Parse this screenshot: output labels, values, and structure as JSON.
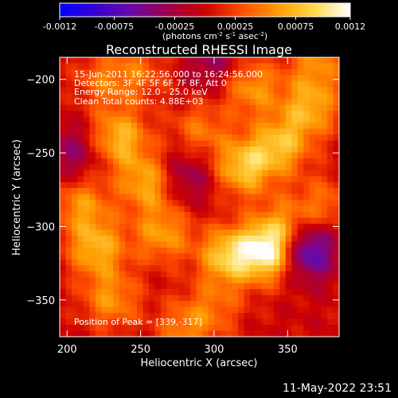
{
  "chart_data": {
    "type": "heatmap",
    "title": "Reconstructed RHESSI Image",
    "xlabel": "Heliocentric X (arcsec)",
    "ylabel": "Heliocentric Y (arcsec)",
    "xlim": [
      195,
      385
    ],
    "ylim": [
      -375,
      -185
    ],
    "xticks": [
      200,
      250,
      300,
      350
    ],
    "yticks": [
      -200,
      -250,
      -300,
      -350
    ],
    "colorbar": {
      "label": "(photons cm",
      "label_parts": [
        "(photons cm",
        "-2",
        " s",
        "-1",
        " asec",
        "-2",
        ")"
      ],
      "range": [
        -0.0012,
        0.0012
      ],
      "ticks": [
        "-0.0012",
        "-0.00075",
        "-0.00025",
        "0.00025",
        "0.00075",
        "0.0012"
      ],
      "colormap": [
        "#0000ff",
        "#3a00d0",
        "#6a0aa8",
        "#a0004a",
        "#cc0000",
        "#ff4d00",
        "#ff9a00",
        "#ffd84a",
        "#ffffff"
      ]
    },
    "annotations": [
      "15-Jun-2011 16:22:56.000 to 16:24:56.000",
      "Detectors: 3F 4F 5F 6F 7F 8F, Att 0",
      "Energy Range: 12.0 - 25.0 keV",
      "Clean    Total counts: 4.88E+03"
    ],
    "peak_label": "Position of Peak = [339,-317]",
    "peak": [
      339,
      -317
    ],
    "sources": [
      {
        "x": 339,
        "y": -317,
        "value": 0.0012
      },
      {
        "x": 310,
        "y": -320,
        "value": 0.00085
      },
      {
        "x": 320,
        "y": -260,
        "value": 0.0008
      },
      {
        "x": 345,
        "y": -245,
        "value": 0.0007
      },
      {
        "x": 365,
        "y": -220,
        "value": 0.00065
      },
      {
        "x": 325,
        "y": -205,
        "value": 0.0006
      },
      {
        "x": 350,
        "y": -300,
        "value": 0.00055
      },
      {
        "x": 235,
        "y": -240,
        "value": 0.00075
      },
      {
        "x": 255,
        "y": -270,
        "value": 0.0007
      },
      {
        "x": 220,
        "y": -315,
        "value": 0.0007
      },
      {
        "x": 210,
        "y": -285,
        "value": 0.00055
      },
      {
        "x": 230,
        "y": -350,
        "value": 0.00055
      },
      {
        "x": 265,
        "y": -305,
        "value": 0.0006
      },
      {
        "x": 290,
        "y": -235,
        "value": 0.00045
      },
      {
        "x": 280,
        "y": -370,
        "value": 0.00045
      },
      {
        "x": 225,
        "y": -200,
        "value": 0.0004
      },
      {
        "x": 370,
        "y": -190,
        "value": 0.0005
      },
      {
        "x": 375,
        "y": -285,
        "value": 0.0004
      },
      {
        "x": 300,
        "y": -355,
        "value": 0.00035
      },
      {
        "x": 250,
        "y": -195,
        "value": 0.00035
      }
    ],
    "negative_sources": [
      {
        "x": 360,
        "y": -315,
        "value": -0.0011
      },
      {
        "x": 280,
        "y": -265,
        "value": -0.00045
      },
      {
        "x": 205,
        "y": -250,
        "value": -0.0004
      },
      {
        "x": 300,
        "y": -190,
        "value": -0.00035
      }
    ]
  },
  "timestamp": "11-May-2022 23:51"
}
